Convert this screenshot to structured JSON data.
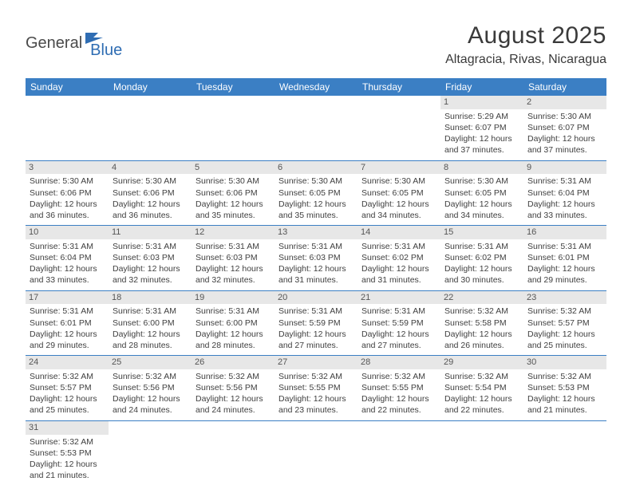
{
  "colors": {
    "header_bg": "#3b7fc4",
    "header_text": "#ffffff",
    "daynum_bg": "#e7e7e7",
    "daynum_text": "#555555",
    "cell_text": "#404040",
    "row_border": "#3b7fc4",
    "logo_gray": "#4a4a4a",
    "logo_blue": "#2f6db3",
    "page_bg": "#ffffff"
  },
  "logo": {
    "part1": "General",
    "part2": "Blue"
  },
  "title": "August 2025",
  "location": "Altagracia, Rivas, Nicaragua",
  "weekdays": [
    "Sunday",
    "Monday",
    "Tuesday",
    "Wednesday",
    "Thursday",
    "Friday",
    "Saturday"
  ],
  "weeks": [
    [
      {
        "blank": true
      },
      {
        "blank": true
      },
      {
        "blank": true
      },
      {
        "blank": true
      },
      {
        "blank": true
      },
      {
        "day": "1",
        "sunrise": "Sunrise: 5:29 AM",
        "sunset": "Sunset: 6:07 PM",
        "day1": "Daylight: 12 hours",
        "day2": "and 37 minutes."
      },
      {
        "day": "2",
        "sunrise": "Sunrise: 5:30 AM",
        "sunset": "Sunset: 6:07 PM",
        "day1": "Daylight: 12 hours",
        "day2": "and 37 minutes."
      }
    ],
    [
      {
        "day": "3",
        "sunrise": "Sunrise: 5:30 AM",
        "sunset": "Sunset: 6:06 PM",
        "day1": "Daylight: 12 hours",
        "day2": "and 36 minutes."
      },
      {
        "day": "4",
        "sunrise": "Sunrise: 5:30 AM",
        "sunset": "Sunset: 6:06 PM",
        "day1": "Daylight: 12 hours",
        "day2": "and 36 minutes."
      },
      {
        "day": "5",
        "sunrise": "Sunrise: 5:30 AM",
        "sunset": "Sunset: 6:06 PM",
        "day1": "Daylight: 12 hours",
        "day2": "and 35 minutes."
      },
      {
        "day": "6",
        "sunrise": "Sunrise: 5:30 AM",
        "sunset": "Sunset: 6:05 PM",
        "day1": "Daylight: 12 hours",
        "day2": "and 35 minutes."
      },
      {
        "day": "7",
        "sunrise": "Sunrise: 5:30 AM",
        "sunset": "Sunset: 6:05 PM",
        "day1": "Daylight: 12 hours",
        "day2": "and 34 minutes."
      },
      {
        "day": "8",
        "sunrise": "Sunrise: 5:30 AM",
        "sunset": "Sunset: 6:05 PM",
        "day1": "Daylight: 12 hours",
        "day2": "and 34 minutes."
      },
      {
        "day": "9",
        "sunrise": "Sunrise: 5:31 AM",
        "sunset": "Sunset: 6:04 PM",
        "day1": "Daylight: 12 hours",
        "day2": "and 33 minutes."
      }
    ],
    [
      {
        "day": "10",
        "sunrise": "Sunrise: 5:31 AM",
        "sunset": "Sunset: 6:04 PM",
        "day1": "Daylight: 12 hours",
        "day2": "and 33 minutes."
      },
      {
        "day": "11",
        "sunrise": "Sunrise: 5:31 AM",
        "sunset": "Sunset: 6:03 PM",
        "day1": "Daylight: 12 hours",
        "day2": "and 32 minutes."
      },
      {
        "day": "12",
        "sunrise": "Sunrise: 5:31 AM",
        "sunset": "Sunset: 6:03 PM",
        "day1": "Daylight: 12 hours",
        "day2": "and 32 minutes."
      },
      {
        "day": "13",
        "sunrise": "Sunrise: 5:31 AM",
        "sunset": "Sunset: 6:03 PM",
        "day1": "Daylight: 12 hours",
        "day2": "and 31 minutes."
      },
      {
        "day": "14",
        "sunrise": "Sunrise: 5:31 AM",
        "sunset": "Sunset: 6:02 PM",
        "day1": "Daylight: 12 hours",
        "day2": "and 31 minutes."
      },
      {
        "day": "15",
        "sunrise": "Sunrise: 5:31 AM",
        "sunset": "Sunset: 6:02 PM",
        "day1": "Daylight: 12 hours",
        "day2": "and 30 minutes."
      },
      {
        "day": "16",
        "sunrise": "Sunrise: 5:31 AM",
        "sunset": "Sunset: 6:01 PM",
        "day1": "Daylight: 12 hours",
        "day2": "and 29 minutes."
      }
    ],
    [
      {
        "day": "17",
        "sunrise": "Sunrise: 5:31 AM",
        "sunset": "Sunset: 6:01 PM",
        "day1": "Daylight: 12 hours",
        "day2": "and 29 minutes."
      },
      {
        "day": "18",
        "sunrise": "Sunrise: 5:31 AM",
        "sunset": "Sunset: 6:00 PM",
        "day1": "Daylight: 12 hours",
        "day2": "and 28 minutes."
      },
      {
        "day": "19",
        "sunrise": "Sunrise: 5:31 AM",
        "sunset": "Sunset: 6:00 PM",
        "day1": "Daylight: 12 hours",
        "day2": "and 28 minutes."
      },
      {
        "day": "20",
        "sunrise": "Sunrise: 5:31 AM",
        "sunset": "Sunset: 5:59 PM",
        "day1": "Daylight: 12 hours",
        "day2": "and 27 minutes."
      },
      {
        "day": "21",
        "sunrise": "Sunrise: 5:31 AM",
        "sunset": "Sunset: 5:59 PM",
        "day1": "Daylight: 12 hours",
        "day2": "and 27 minutes."
      },
      {
        "day": "22",
        "sunrise": "Sunrise: 5:32 AM",
        "sunset": "Sunset: 5:58 PM",
        "day1": "Daylight: 12 hours",
        "day2": "and 26 minutes."
      },
      {
        "day": "23",
        "sunrise": "Sunrise: 5:32 AM",
        "sunset": "Sunset: 5:57 PM",
        "day1": "Daylight: 12 hours",
        "day2": "and 25 minutes."
      }
    ],
    [
      {
        "day": "24",
        "sunrise": "Sunrise: 5:32 AM",
        "sunset": "Sunset: 5:57 PM",
        "day1": "Daylight: 12 hours",
        "day2": "and 25 minutes."
      },
      {
        "day": "25",
        "sunrise": "Sunrise: 5:32 AM",
        "sunset": "Sunset: 5:56 PM",
        "day1": "Daylight: 12 hours",
        "day2": "and 24 minutes."
      },
      {
        "day": "26",
        "sunrise": "Sunrise: 5:32 AM",
        "sunset": "Sunset: 5:56 PM",
        "day1": "Daylight: 12 hours",
        "day2": "and 24 minutes."
      },
      {
        "day": "27",
        "sunrise": "Sunrise: 5:32 AM",
        "sunset": "Sunset: 5:55 PM",
        "day1": "Daylight: 12 hours",
        "day2": "and 23 minutes."
      },
      {
        "day": "28",
        "sunrise": "Sunrise: 5:32 AM",
        "sunset": "Sunset: 5:55 PM",
        "day1": "Daylight: 12 hours",
        "day2": "and 22 minutes."
      },
      {
        "day": "29",
        "sunrise": "Sunrise: 5:32 AM",
        "sunset": "Sunset: 5:54 PM",
        "day1": "Daylight: 12 hours",
        "day2": "and 22 minutes."
      },
      {
        "day": "30",
        "sunrise": "Sunrise: 5:32 AM",
        "sunset": "Sunset: 5:53 PM",
        "day1": "Daylight: 12 hours",
        "day2": "and 21 minutes."
      }
    ],
    [
      {
        "day": "31",
        "sunrise": "Sunrise: 5:32 AM",
        "sunset": "Sunset: 5:53 PM",
        "day1": "Daylight: 12 hours",
        "day2": "and 21 minutes."
      },
      {
        "blank": true
      },
      {
        "blank": true
      },
      {
        "blank": true
      },
      {
        "blank": true
      },
      {
        "blank": true
      },
      {
        "blank": true
      }
    ]
  ]
}
